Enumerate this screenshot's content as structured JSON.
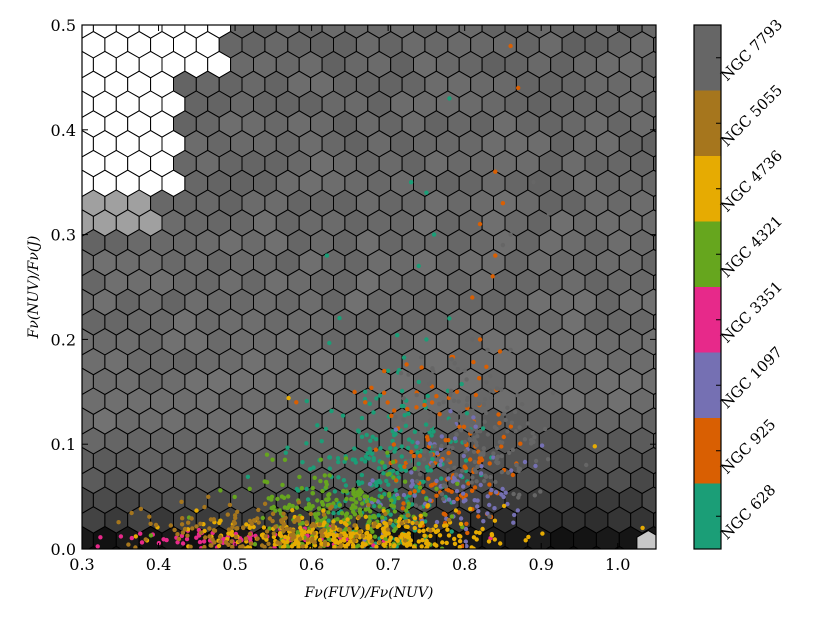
{
  "chart_data": {
    "type": "scatter",
    "background": "hexbin density (grayscale)",
    "xlabel": "Fν(FUV)/Fν(NUV)",
    "ylabel": "Fν(NUV)/Fν(J)",
    "xlim": [
      0.3,
      1.05
    ],
    "ylim": [
      0.0,
      0.5
    ],
    "x_ticks": [
      {
        "value": 0.3,
        "label": "0.3"
      },
      {
        "value": 0.4,
        "label": "0.4"
      },
      {
        "value": 0.5,
        "label": "0.5"
      },
      {
        "value": 0.6,
        "label": "0.6"
      },
      {
        "value": 0.7,
        "label": "0.7"
      },
      {
        "value": 0.8,
        "label": "0.8"
      },
      {
        "value": 0.9,
        "label": "0.9"
      },
      {
        "value": 1.0,
        "label": "1.0"
      }
    ],
    "y_ticks": [
      {
        "value": 0.0,
        "label": "0.0"
      },
      {
        "value": 0.1,
        "label": "0.1"
      },
      {
        "value": 0.2,
        "label": "0.2"
      },
      {
        "value": 0.3,
        "label": "0.3"
      },
      {
        "value": 0.4,
        "label": "0.4"
      },
      {
        "value": 0.5,
        "label": "0.5"
      }
    ],
    "legend_position": "colorbar-right",
    "series": [
      {
        "name": "NGC 628",
        "color": "#1b9e77",
        "cx": 0.7,
        "cy": 0.07,
        "sx": 0.05,
        "sy": 0.045,
        "n": 260,
        "points": [
          [
            0.73,
            0.35
          ],
          [
            0.75,
            0.34
          ],
          [
            0.76,
            0.3
          ],
          [
            0.74,
            0.27
          ],
          [
            0.78,
            0.22
          ],
          [
            0.75,
            0.2
          ],
          [
            0.7,
            0.17
          ],
          [
            0.67,
            0.15
          ],
          [
            0.62,
            0.28
          ],
          [
            0.78,
            0.43
          ]
        ]
      },
      {
        "name": "NGC 925",
        "color": "#d95f02",
        "cx": 0.77,
        "cy": 0.09,
        "sx": 0.05,
        "sy": 0.05,
        "n": 130,
        "points": [
          [
            0.86,
            0.48
          ],
          [
            0.87,
            0.44
          ],
          [
            0.84,
            0.36
          ],
          [
            0.85,
            0.33
          ],
          [
            0.82,
            0.31
          ],
          [
            0.84,
            0.28
          ],
          [
            0.81,
            0.24
          ],
          [
            0.82,
            0.2
          ],
          [
            0.79,
            0.15
          ],
          [
            0.67,
            0.14
          ],
          [
            0.58,
            0.14
          ]
        ]
      },
      {
        "name": "NGC 1097",
        "color": "#7570b3",
        "cx": 0.78,
        "cy": 0.05,
        "sx": 0.05,
        "sy": 0.03,
        "n": 90,
        "points": []
      },
      {
        "name": "NGC 3351",
        "color": "#e7298a",
        "cx": 0.52,
        "cy": 0.01,
        "sx": 0.1,
        "sy": 0.005,
        "n": 80,
        "points": []
      },
      {
        "name": "NGC 4321",
        "color": "#66a61e",
        "cx": 0.64,
        "cy": 0.035,
        "sx": 0.06,
        "sy": 0.02,
        "n": 240,
        "points": [
          [
            0.39,
            0.013
          ],
          [
            0.44,
            0.03
          ]
        ]
      },
      {
        "name": "NGC 4736",
        "color": "#e6ab02",
        "cx": 0.65,
        "cy": 0.012,
        "sx": 0.1,
        "sy": 0.01,
        "n": 300,
        "points": [
          [
            0.57,
            0.144
          ],
          [
            0.97,
            0.098
          ]
        ]
      },
      {
        "name": "NGC 5055",
        "color": "#a6761d",
        "cx": 0.55,
        "cy": 0.02,
        "sx": 0.1,
        "sy": 0.012,
        "n": 160,
        "points": [
          [
            0.43,
            0.045
          ],
          [
            0.46,
            0.04
          ]
        ]
      },
      {
        "name": "NGC 7793",
        "color": "#666666",
        "cx": 0.81,
        "cy": 0.1,
        "sx": 0.045,
        "sy": 0.035,
        "n": 160,
        "points": [
          [
            0.89,
            0.35
          ],
          [
            0.91,
            0.32
          ],
          [
            0.86,
            0.3
          ],
          [
            0.89,
            0.26
          ],
          [
            0.85,
            0.29
          ],
          [
            0.83,
            0.19
          ],
          [
            0.86,
            0.19
          ],
          [
            0.81,
            0.2
          ],
          [
            0.8,
            0.17
          ]
        ]
      }
    ]
  }
}
